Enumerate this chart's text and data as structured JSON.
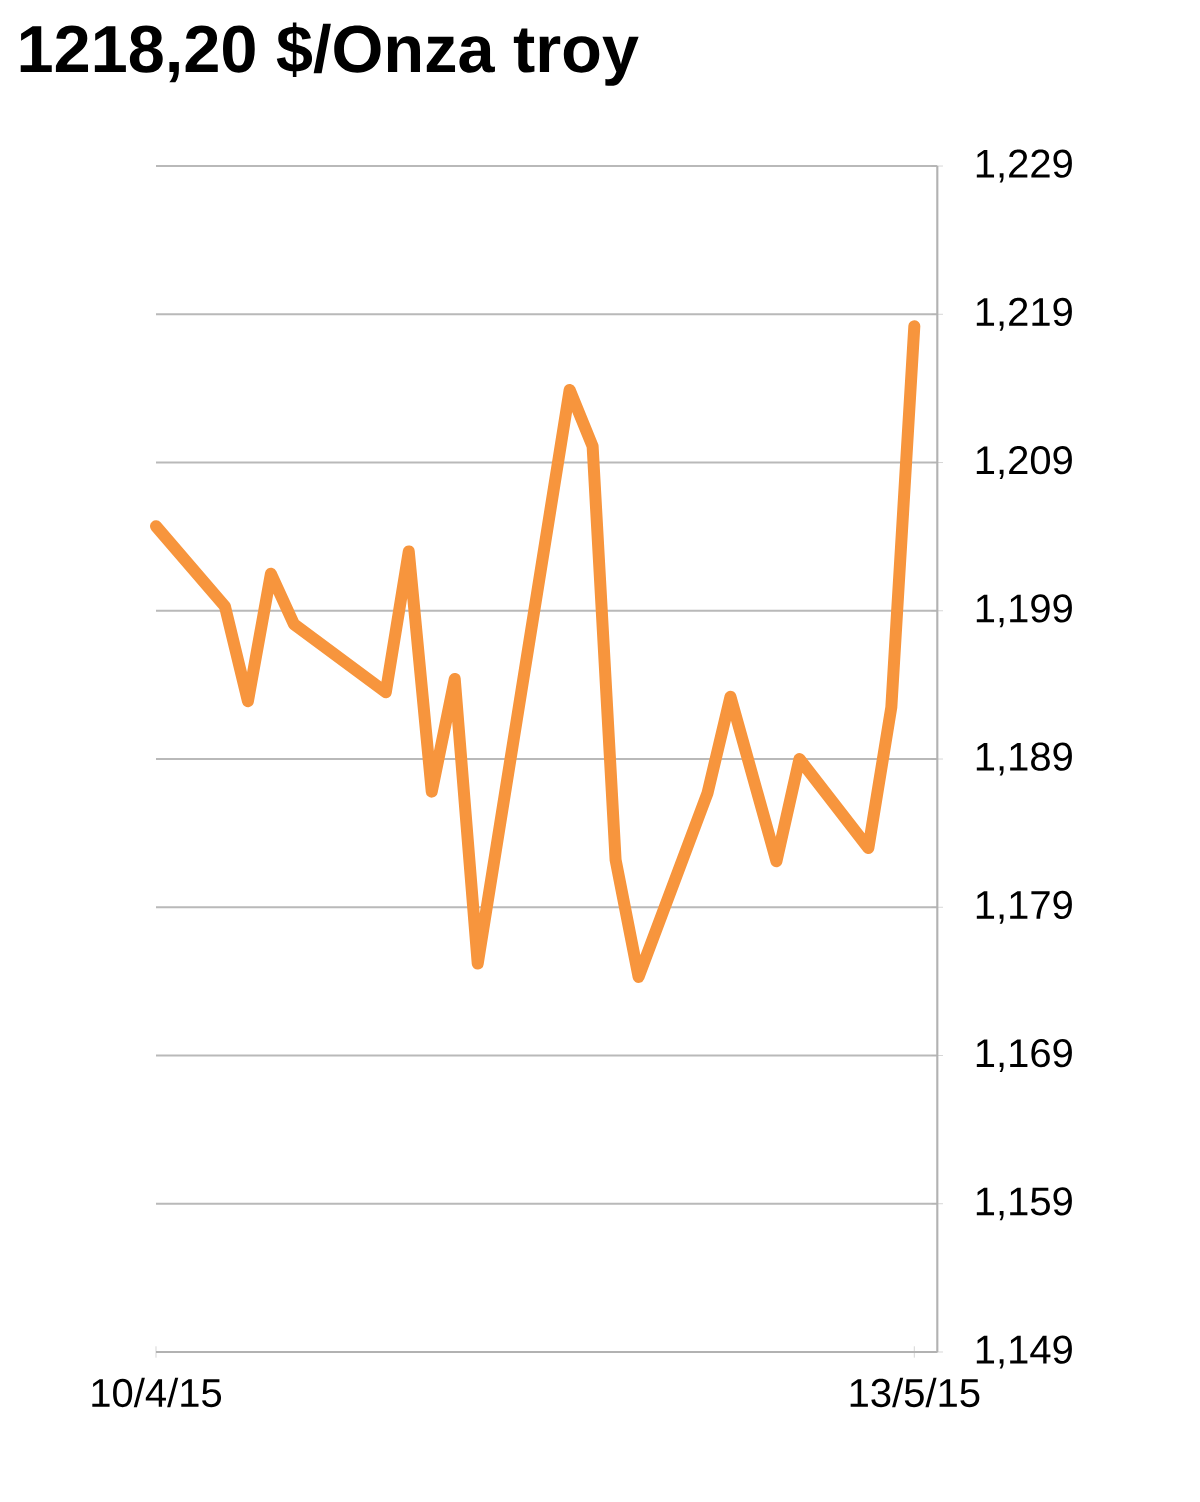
{
  "chart_data": {
    "type": "line",
    "title": "1218,20 $/Onza troy",
    "x": [
      "2015-04-10",
      "2015-04-13",
      "2015-04-14",
      "2015-04-15",
      "2015-04-16",
      "2015-04-20",
      "2015-04-21",
      "2015-04-22",
      "2015-04-23",
      "2015-04-24",
      "2015-04-28",
      "2015-04-29",
      "2015-04-30",
      "2015-05-01",
      "2015-05-04",
      "2015-05-05",
      "2015-05-07",
      "2015-05-08",
      "2015-05-11",
      "2015-05-12",
      "2015-05-13"
    ],
    "series": [
      {
        "color": "#f7953d",
        "values": [
          1204.7,
          1199.3,
          1192.9,
          1201.5,
          1198.1,
          1193.5,
          1203.0,
          1186.8,
          1194.4,
          1175.2,
          1213.9,
          1210.1,
          1182.2,
          1174.3,
          1186.7,
          1193.2,
          1182.1,
          1189.0,
          1183.0,
          1192.5,
          1218.2
        ]
      }
    ],
    "xlim": [
      "2015-04-10",
      "2015-05-14"
    ],
    "xticks": [
      {
        "value": "2015-04-10",
        "label": "10/4/15"
      },
      {
        "value": "2015-05-13",
        "label": "13/5/15"
      }
    ],
    "ylim": [
      1149,
      1229
    ],
    "yticks": [
      {
        "value": 1149,
        "label": "1,149"
      },
      {
        "value": 1159,
        "label": "1,159"
      },
      {
        "value": 1169,
        "label": "1,169"
      },
      {
        "value": 1179,
        "label": "1,179"
      },
      {
        "value": 1189,
        "label": "1,189"
      },
      {
        "value": 1199,
        "label": "1,199"
      },
      {
        "value": 1209,
        "label": "1,209"
      },
      {
        "value": 1219,
        "label": "1,219"
      },
      {
        "value": 1229,
        "label": "1,229"
      }
    ],
    "grid": "y",
    "marker": "none",
    "line_style": "solid"
  }
}
